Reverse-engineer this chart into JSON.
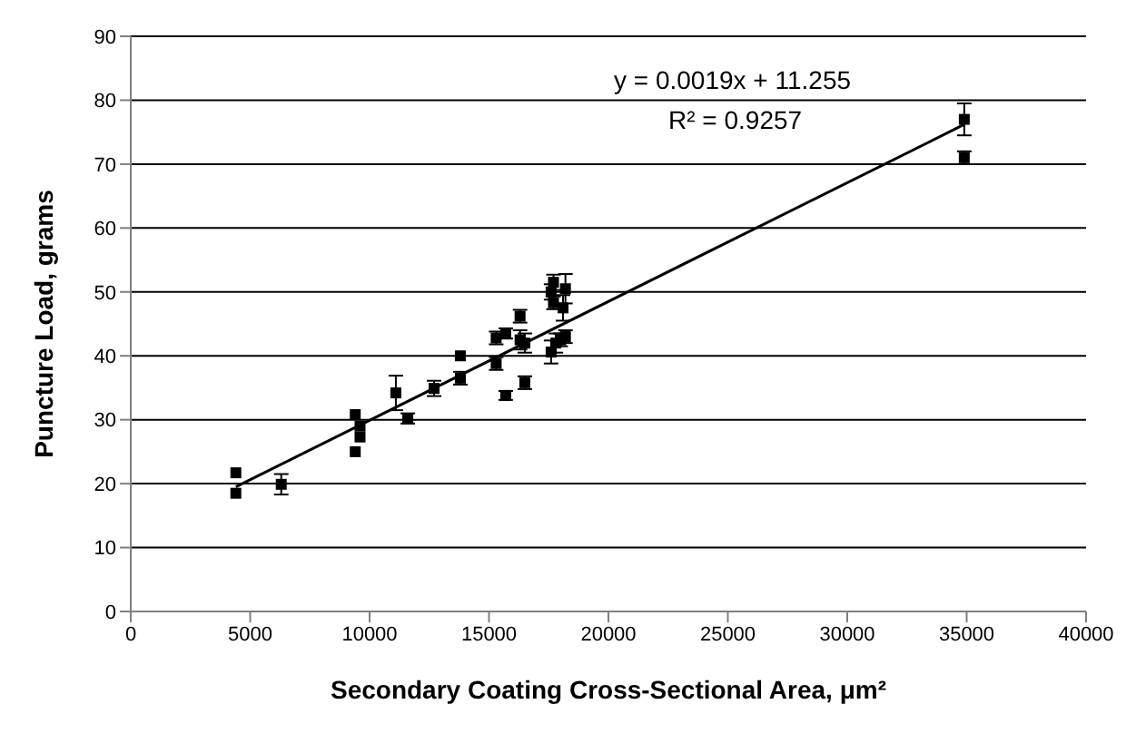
{
  "chart_data": {
    "type": "scatter",
    "xlabel": "Secondary Coating Cross-Sectional Area, μm²",
    "ylabel": "Puncture Load, grams",
    "xlim": [
      0,
      40000
    ],
    "xticks": [
      0,
      5000,
      10000,
      15000,
      20000,
      25000,
      30000,
      35000,
      40000
    ],
    "ylim": [
      0,
      90
    ],
    "yticks": [
      0,
      10,
      20,
      30,
      40,
      50,
      60,
      70,
      80,
      90
    ],
    "grid": "y",
    "legend": false,
    "marker": "square",
    "annotations": [
      "y = 0.0019x + 11.255",
      "R² = 0.9257"
    ],
    "series": [
      {
        "color": "#000000",
        "x": [
          4400,
          4400,
          6300,
          9400,
          9400,
          9600,
          9600,
          11100,
          11600,
          12700,
          13800,
          13800,
          15300,
          15300,
          15700,
          15700,
          16300,
          16300,
          16500,
          16500,
          17600,
          17600,
          17700,
          17700,
          17800,
          18100,
          18200,
          18200,
          18000,
          34900,
          34900
        ],
        "values": [
          21.7,
          18.5,
          19.9,
          30.8,
          25,
          29,
          27.3,
          34.2,
          30.2,
          34.9,
          40,
          36.5,
          42.8,
          38.8,
          43.5,
          33.8,
          46.2,
          42.5,
          42,
          35.8,
          50,
          40.6,
          48.3,
          51.5,
          42,
          47.5,
          50.5,
          43,
          42.5,
          77,
          71
        ],
        "errors": [
          null,
          null,
          1.6,
          null,
          null,
          null,
          null,
          2.7,
          0.8,
          1.2,
          null,
          1,
          1,
          1,
          0.8,
          0.7,
          1,
          1.5,
          1.5,
          1,
          1.2,
          1.8,
          1,
          1.2,
          1.5,
          2,
          2.3,
          1,
          1,
          2.5,
          1
        ]
      },
      {
        "type": "line",
        "marker": "none",
        "color": "#000000",
        "x": [
          4400,
          34900
        ],
        "values": [
          19.5,
          76.2
        ]
      }
    ]
  }
}
